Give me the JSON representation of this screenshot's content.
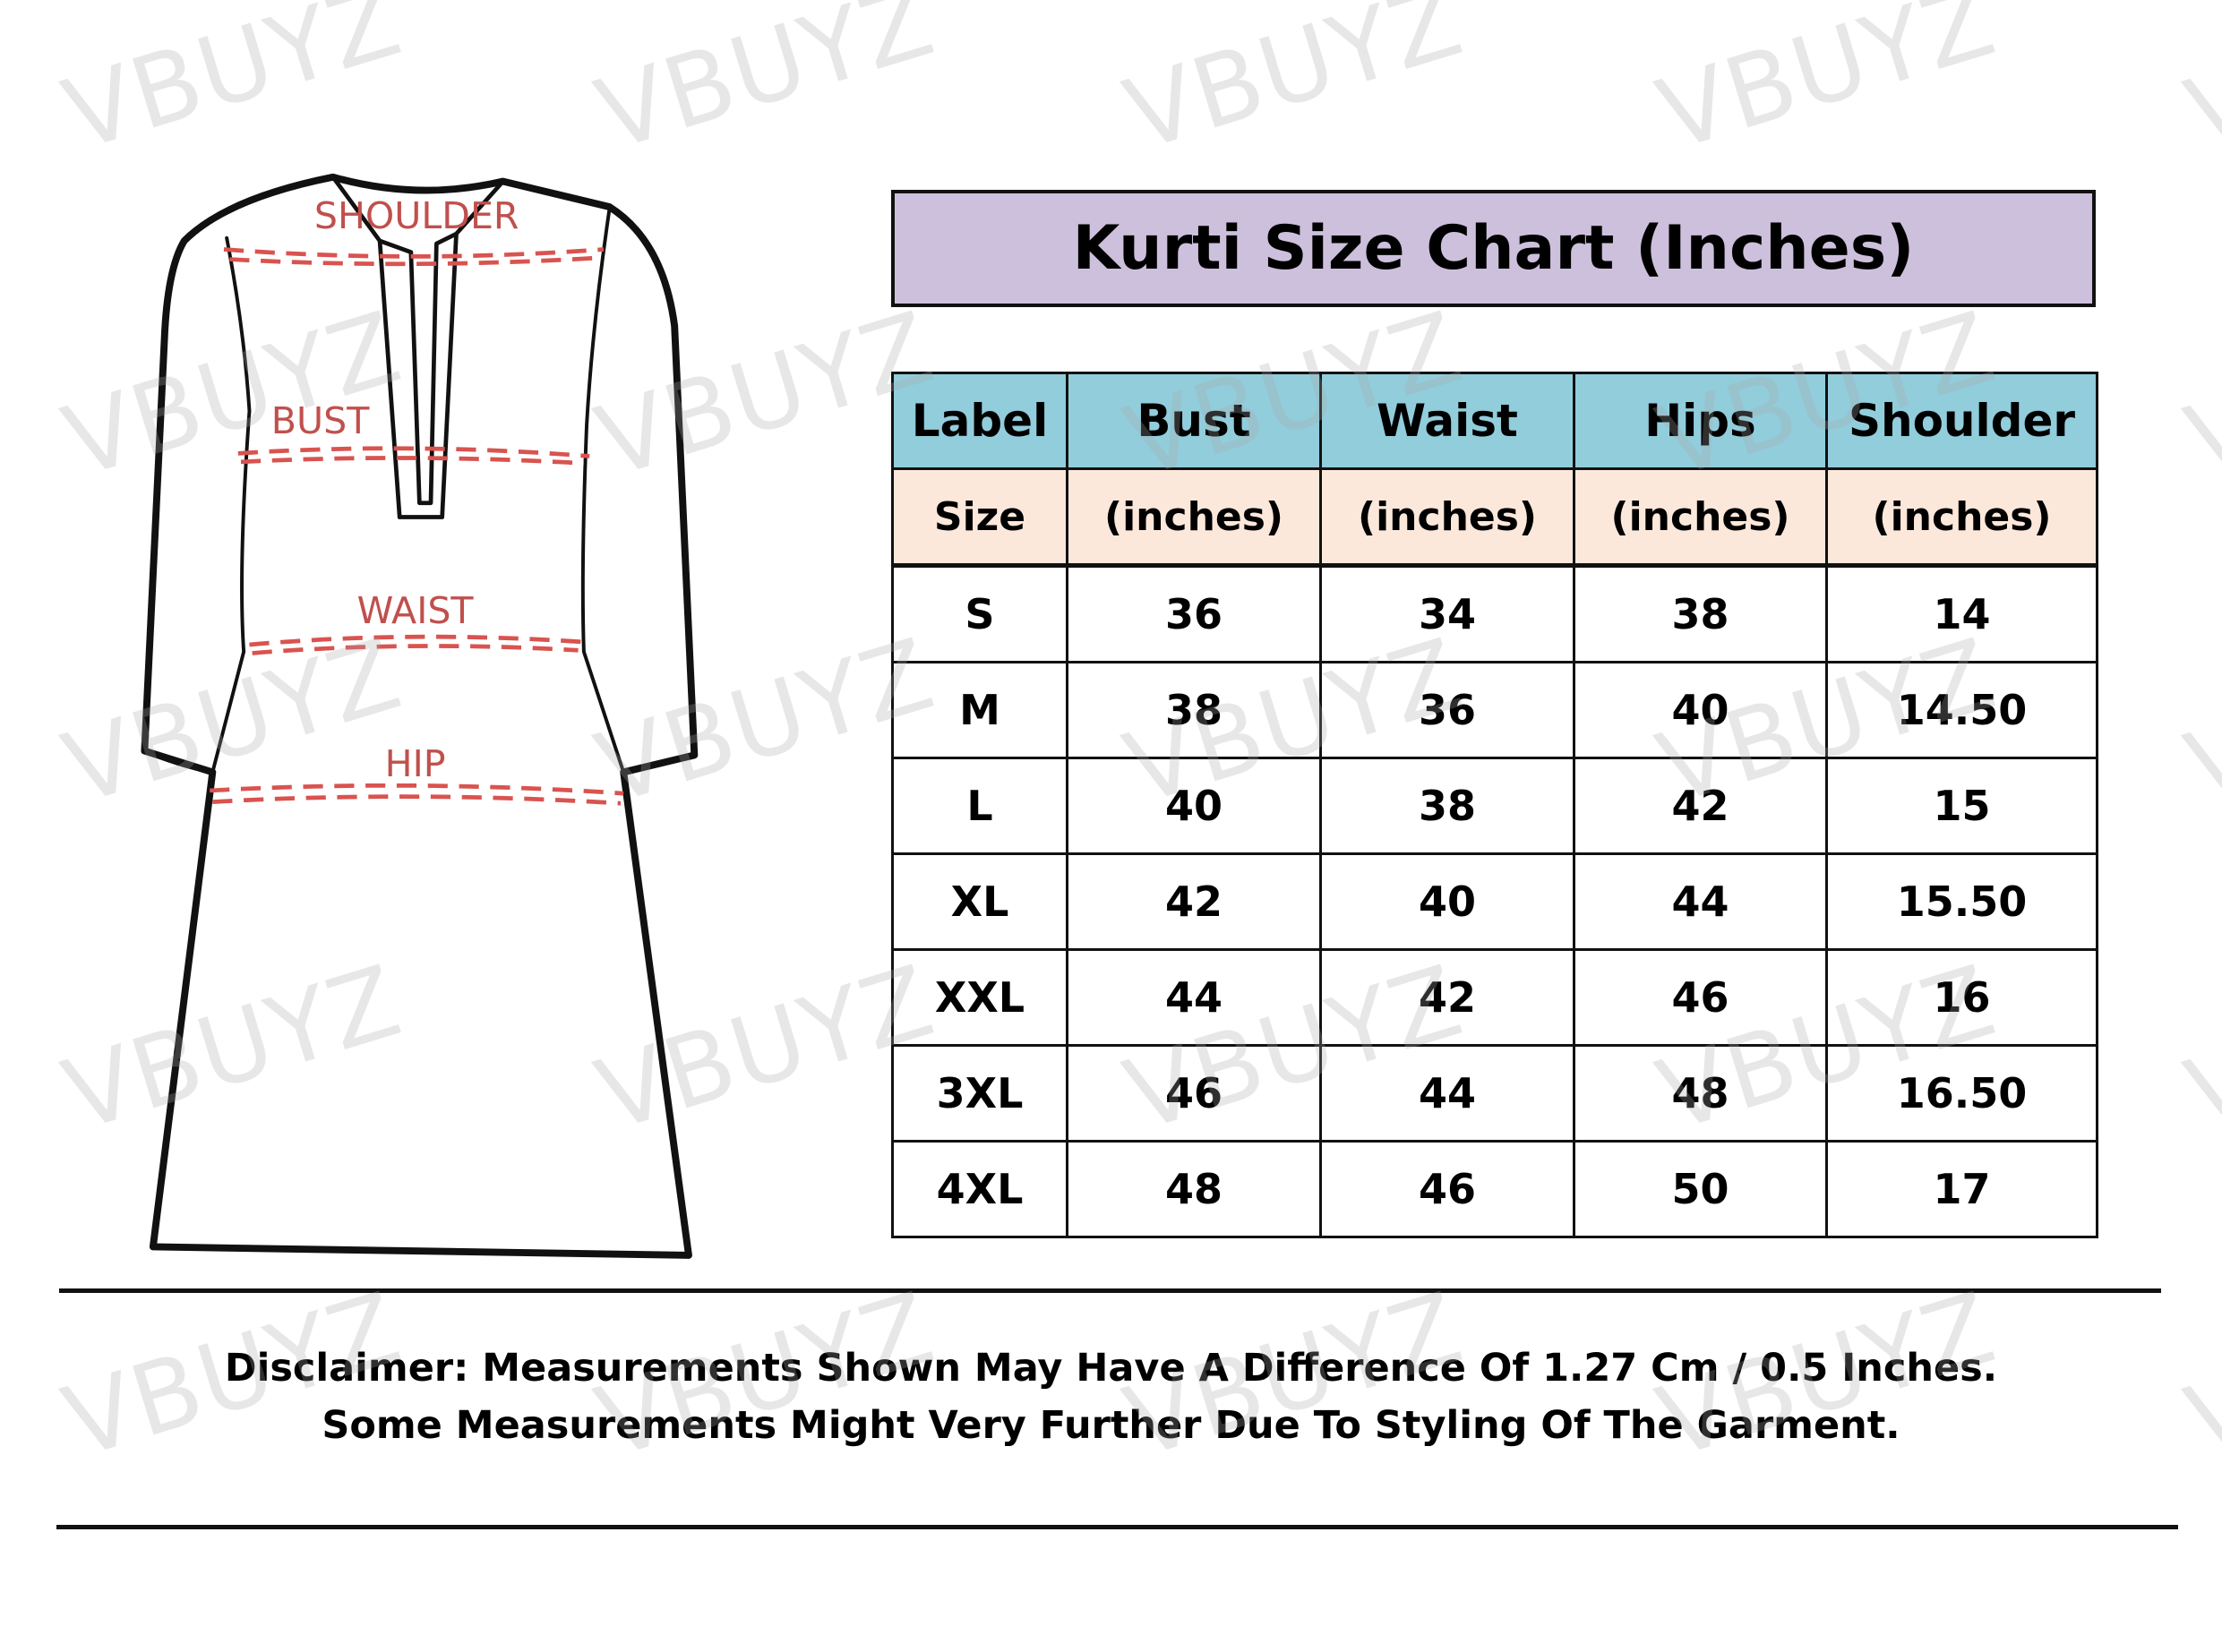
{
  "watermark": "VBUYZ",
  "diagram": {
    "labels": {
      "shoulder": "SHOULDER",
      "bust": "BUST",
      "waist": "WAIST",
      "hip": "HIP"
    },
    "measure_line_color": "#c0504d",
    "outline_color": "#111111"
  },
  "title": "Kurti Size Chart (Inches)",
  "colors": {
    "title_bg": "#cdc0dc",
    "header_bg": "#92cddc",
    "subheader_bg": "#fce8db"
  },
  "table": {
    "headers": [
      "Label",
      "Bust",
      "Waist",
      "Hips",
      "Shoulder"
    ],
    "subheaders": [
      "Size",
      "(inches)",
      "(inches)",
      "(inches)",
      "(inches)"
    ],
    "rows": [
      [
        "S",
        "36",
        "34",
        "38",
        "14"
      ],
      [
        "M",
        "38",
        "36",
        "40",
        "14.50"
      ],
      [
        "L",
        "40",
        "38",
        "42",
        "15"
      ],
      [
        "XL",
        "42",
        "40",
        "44",
        "15.50"
      ],
      [
        "XXL",
        "44",
        "42",
        "46",
        "16"
      ],
      [
        "3XL",
        "46",
        "44",
        "48",
        "16.50"
      ],
      [
        "4XL",
        "48",
        "46",
        "50",
        "17"
      ]
    ]
  },
  "disclaimer": {
    "line1": "Disclaimer: Measurements Shown May Have A Difference Of 1.27 Cm / 0.5 Inches.",
    "line2": "Some Measurements Might Very Further Due To Styling Of The Garment."
  }
}
